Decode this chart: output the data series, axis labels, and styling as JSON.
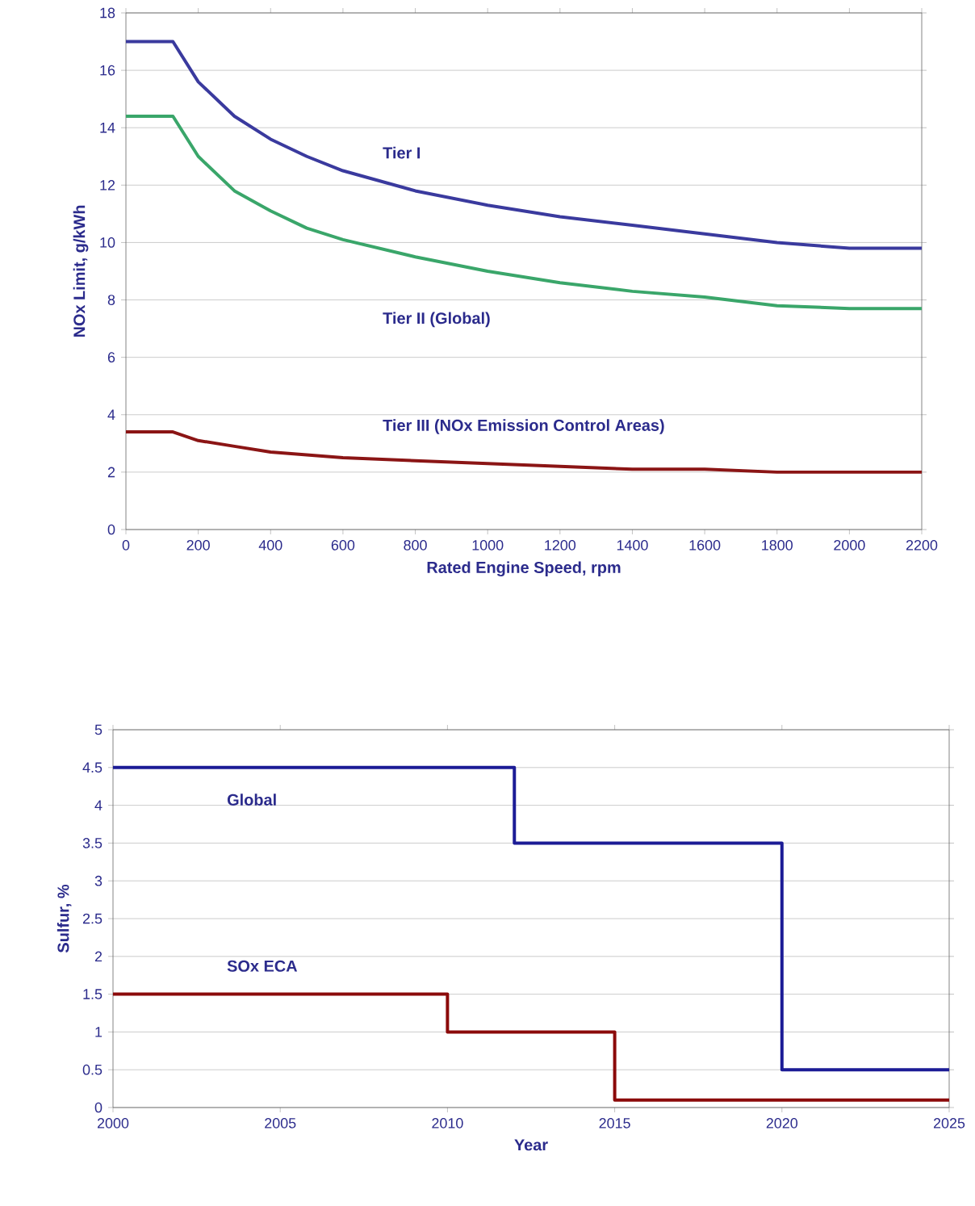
{
  "chart_data": [
    {
      "type": "line",
      "xlabel": "Rated Engine Speed, rpm",
      "ylabel": "NOx Limit, g/kWh",
      "xlim": [
        0,
        2200
      ],
      "ylim": [
        0,
        18
      ],
      "xticks": [
        0,
        200,
        400,
        600,
        800,
        1000,
        1200,
        1400,
        1600,
        1800,
        2000,
        2200
      ],
      "yticks": [
        0,
        2,
        4,
        6,
        8,
        10,
        12,
        14,
        16,
        18
      ],
      "grid": "y",
      "series": [
        {
          "name": "Tier I",
          "color": "#3a3a9e",
          "x": [
            0,
            130,
            200,
            300,
            400,
            500,
            600,
            800,
            1000,
            1200,
            1400,
            1600,
            1800,
            2000,
            2200
          ],
          "values": [
            17.0,
            17.0,
            15.6,
            14.4,
            13.6,
            13.0,
            12.5,
            11.8,
            11.3,
            10.9,
            10.6,
            10.3,
            10.0,
            9.8,
            9.8
          ]
        },
        {
          "name": "Tier II (Global)",
          "color": "#3aa66a",
          "x": [
            0,
            130,
            200,
            300,
            400,
            500,
            600,
            800,
            1000,
            1200,
            1400,
            1600,
            1800,
            2000,
            2200
          ],
          "values": [
            14.4,
            14.4,
            13.0,
            11.8,
            11.1,
            10.5,
            10.1,
            9.5,
            9.0,
            8.6,
            8.3,
            8.1,
            7.8,
            7.7,
            7.7
          ]
        },
        {
          "name": "Tier III (NOx Emission  Control Areas)",
          "color": "#8b1515",
          "x": [
            0,
            130,
            200,
            300,
            400,
            500,
            600,
            800,
            1000,
            1200,
            1400,
            1600,
            1800,
            2000,
            2200
          ],
          "values": [
            3.4,
            3.4,
            3.1,
            2.9,
            2.7,
            2.6,
            2.5,
            2.4,
            2.3,
            2.2,
            2.1,
            2.1,
            2.0,
            2.0,
            2.0
          ]
        }
      ]
    },
    {
      "type": "step",
      "xlabel": "Year",
      "ylabel": "Sulfur, %",
      "xlim": [
        2000,
        2025
      ],
      "ylim": [
        0,
        5
      ],
      "xticks": [
        2000,
        2005,
        2010,
        2015,
        2020,
        2025
      ],
      "yticks": [
        0,
        0.5,
        1,
        1.5,
        2,
        2.5,
        3,
        3.5,
        4,
        4.5,
        5
      ],
      "grid": "y",
      "series": [
        {
          "name": "Global",
          "color": "#1c1c96",
          "x": [
            2000,
            2012,
            2020,
            2025
          ],
          "values": [
            4.5,
            3.5,
            0.5,
            0.5
          ]
        },
        {
          "name": "SOx ECA",
          "color": "#8b0a0a",
          "x": [
            2000,
            2010,
            2015,
            2025
          ],
          "values": [
            1.5,
            1.0,
            0.1,
            0.1
          ]
        }
      ]
    }
  ]
}
